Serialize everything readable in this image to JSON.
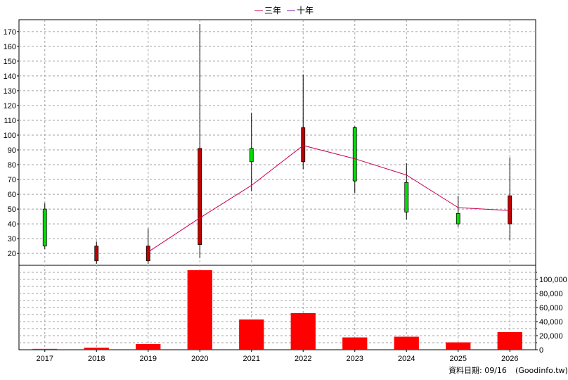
{
  "chart_data": {
    "type": "candlestick-with-volume",
    "legend": [
      {
        "name": "三年",
        "color": "#cc0055"
      },
      {
        "name": "十年",
        "color": "#7a1fa2"
      }
    ],
    "categories": [
      "2017",
      "2018",
      "2019",
      "2020",
      "2021",
      "2022",
      "2023",
      "2024",
      "2025",
      "2026"
    ],
    "price_axis": {
      "ylim": [
        12,
        178
      ],
      "ticks": [
        20,
        30,
        40,
        50,
        60,
        70,
        80,
        90,
        100,
        110,
        120,
        130,
        140,
        150,
        160,
        170
      ]
    },
    "candles": [
      {
        "year": "2017",
        "open": 25,
        "close": 50,
        "high": 54,
        "low": 23
      },
      {
        "year": "2018",
        "open": 25,
        "close": 15,
        "high": 28,
        "low": 13
      },
      {
        "year": "2019",
        "open": 25,
        "close": 15,
        "high": 37,
        "low": 13
      },
      {
        "year": "2020",
        "open": 91,
        "close": 26,
        "high": 175,
        "low": 17
      },
      {
        "year": "2021",
        "open": 82,
        "close": 91,
        "high": 115,
        "low": 62
      },
      {
        "year": "2022",
        "open": 105,
        "close": 82,
        "high": 141,
        "low": 77
      },
      {
        "year": "2023",
        "open": 69,
        "close": 105,
        "high": 106,
        "low": 61
      },
      {
        "year": "2024",
        "open": 48,
        "close": 68,
        "high": 81,
        "low": 43
      },
      {
        "year": "2025",
        "open": 40,
        "close": 47,
        "high": 59,
        "low": 38
      },
      {
        "year": "2026",
        "open": 59,
        "close": 40,
        "high": 85,
        "low": 29
      }
    ],
    "candle_colors": {
      "up": "#00e000",
      "down": "#c00000"
    },
    "series": [
      {
        "name": "三年",
        "color": "#cc0055",
        "values": [
          null,
          null,
          21,
          44,
          66,
          93,
          84,
          73,
          51,
          49
        ]
      }
    ],
    "volume_axis": {
      "ylim": [
        0,
        120000
      ],
      "ticks": [
        0,
        20000,
        40000,
        60000,
        80000,
        100000
      ],
      "tick_labels": [
        "0",
        "20,000",
        "40,000",
        "60,000",
        "80,000",
        "100,000"
      ]
    },
    "volume": [
      1200,
      3000,
      8000,
      113000,
      43000,
      52000,
      17500,
      18500,
      10500,
      25000
    ],
    "volume_color": "#ff0000",
    "grid": true
  },
  "footer": {
    "date_label": "資料日期: 09/16",
    "source": "(Goodinfo.tw)"
  }
}
